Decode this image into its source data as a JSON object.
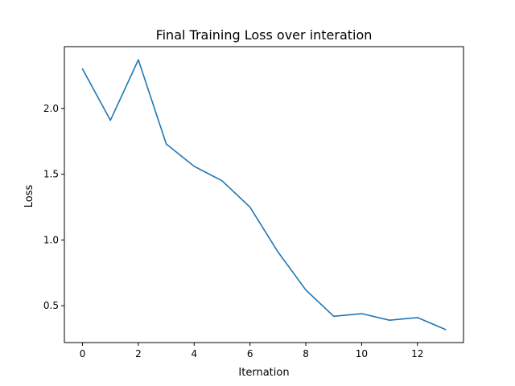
{
  "chart_data": {
    "type": "line",
    "title": "Final Training Loss over interation",
    "xlabel": "Iternation",
    "ylabel": "Loss",
    "x": [
      0,
      1,
      2,
      3,
      4,
      5,
      6,
      7,
      8,
      9,
      10,
      11,
      12,
      13
    ],
    "series": [
      {
        "values": [
          2.3,
          1.91,
          2.37,
          1.73,
          1.56,
          1.45,
          1.25,
          0.91,
          0.62,
          0.42,
          0.44,
          0.39,
          0.41,
          0.32
        ],
        "color": "#1f77b4"
      }
    ],
    "xlim": [
      -0.65,
      13.65
    ],
    "ylim": [
      0.22,
      2.47
    ],
    "xticks": [
      0,
      2,
      4,
      6,
      8,
      10,
      12
    ],
    "xtick_labels": [
      "0",
      "2",
      "4",
      "6",
      "8",
      "10",
      "12"
    ],
    "yticks": [
      0.5,
      1.0,
      1.5,
      2.0
    ],
    "ytick_labels": [
      "0.5",
      "1.0",
      "1.5",
      "2.0"
    ],
    "grid": false,
    "legend": false
  }
}
